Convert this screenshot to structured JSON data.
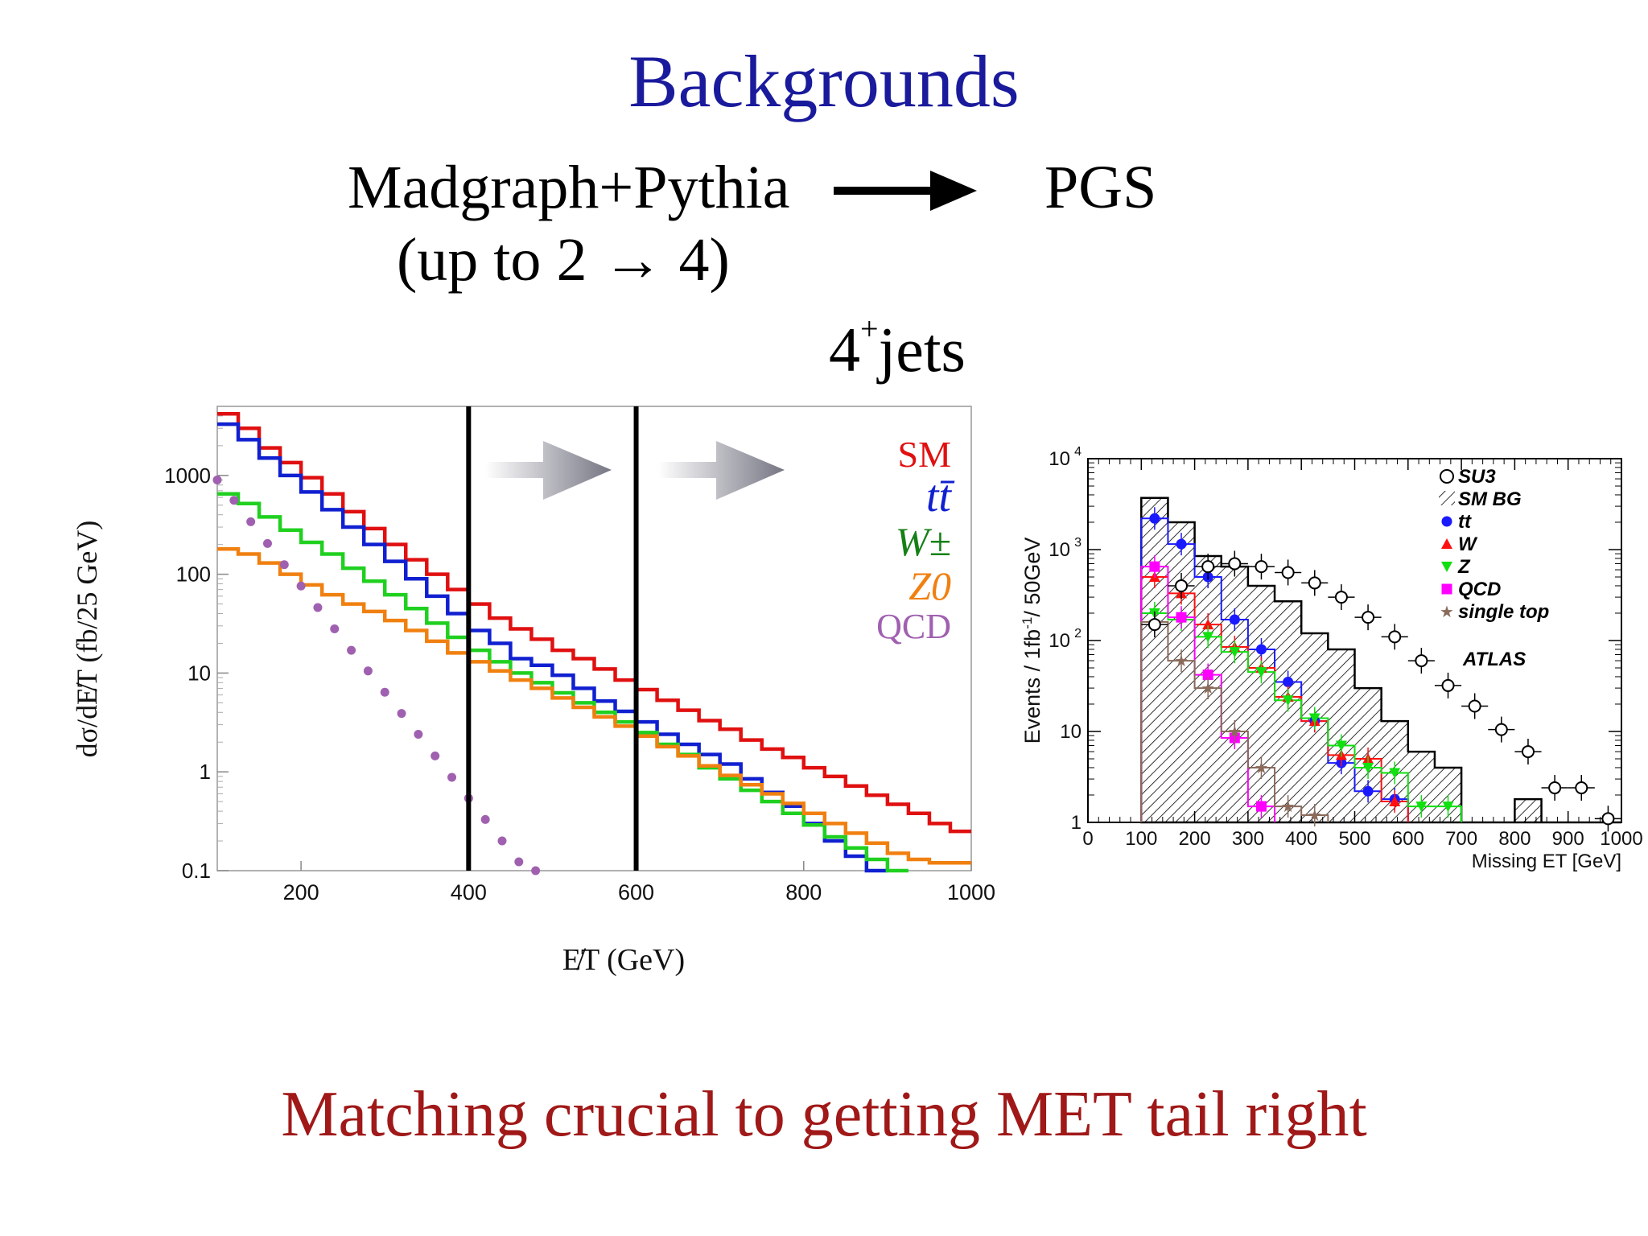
{
  "slide": {
    "title": "Backgrounds",
    "flow_left": "Madgraph+Pythia",
    "flow_sub_prefix": "(up to ",
    "flow_sub_math": "2 → 4",
    "flow_sub_suffix": ")",
    "flow_right": "PGS",
    "jets_base": "4",
    "jets_sup": "+",
    "jets_suffix": "jets",
    "footer": "Matching crucial to getting MET tail right"
  },
  "colors": {
    "title": "#1a1a9c",
    "footer": "#a01818",
    "SM": "#e01010",
    "tt": "#1020d0",
    "W": "#20d020",
    "Z0": "#f08010",
    "QCD": "#a060b0"
  },
  "chart_data": [
    {
      "type": "line",
      "style": "step histogram, log y-axis",
      "ylabel": "dσ/dE̸T (fb/25 GeV)",
      "xlabel": "E̸T (GeV)",
      "xlim": [
        100,
        1000
      ],
      "ylim": [
        0.1,
        5000
      ],
      "yscale": "log",
      "x_ticks": [
        "200",
        "400",
        "600",
        "800",
        "1000"
      ],
      "y_ticks": [
        "0.1",
        "1",
        "10",
        "100",
        "1000"
      ],
      "x_tick_values": [
        200,
        400,
        600,
        800,
        1000
      ],
      "y_tick_values": [
        0.1,
        1,
        10,
        100,
        1000
      ],
      "cut_lines": [
        400,
        600
      ],
      "legend_placement": "top-right",
      "legend": [
        "SM",
        "tt̄",
        "W±",
        "Z0",
        "QCD"
      ],
      "bin_edges_start": 100,
      "bin_width": 25,
      "series": [
        {
          "name": "SM",
          "color": "#e01010",
          "values": [
            4200,
            3000,
            1900,
            1350,
            950,
            650,
            430,
            290,
            200,
            140,
            100,
            70,
            50,
            36,
            28,
            22,
            17,
            14,
            11,
            8.5,
            6.8,
            5.3,
            4.2,
            3.3,
            2.7,
            2.1,
            1.7,
            1.4,
            1.1,
            0.9,
            0.72,
            0.58,
            0.47,
            0.38,
            0.3,
            0.25
          ]
        },
        {
          "name": "tt̄",
          "color": "#1020d0",
          "values": [
            3300,
            2300,
            1500,
            1000,
            680,
            450,
            300,
            200,
            135,
            90,
            60,
            40,
            27,
            20,
            14,
            12,
            9.5,
            7,
            5.2,
            4.1,
            3.2,
            2.4,
            1.9,
            1.5,
            1.2,
            0.85,
            0.62,
            0.45,
            0.3,
            0.2,
            0.14,
            0.1
          ]
        },
        {
          "name": "W±",
          "color": "#20d020",
          "values": [
            650,
            520,
            380,
            280,
            210,
            160,
            115,
            85,
            62,
            45,
            32,
            23,
            17,
            13,
            10,
            8,
            6.3,
            5,
            4,
            3.2,
            2.5,
            1.9,
            1.5,
            1.1,
            0.85,
            0.65,
            0.5,
            0.38,
            0.29,
            0.22,
            0.17,
            0.13,
            0.1
          ]
        },
        {
          "name": "Z0",
          "color": "#f08010",
          "values": [
            180,
            160,
            130,
            100,
            78,
            62,
            50,
            42,
            34,
            27,
            21,
            16,
            13,
            10.5,
            8.5,
            7,
            5.6,
            4.5,
            3.6,
            2.9,
            2.3,
            1.8,
            1.45,
            1.15,
            0.92,
            0.74,
            0.6,
            0.48,
            0.38,
            0.3,
            0.24,
            0.19,
            0.15,
            0.13,
            0.12,
            0.12
          ]
        },
        {
          "name": "QCD",
          "type": "scatter",
          "color": "#a060b0",
          "x": [
            100,
            120,
            140,
            160,
            180,
            200,
            220,
            240,
            260,
            280,
            300,
            320,
            340,
            360,
            380,
            400,
            420,
            440,
            460,
            480
          ],
          "values": [
            900,
            560,
            340,
            205,
            125,
            76,
            46,
            28,
            17,
            10.5,
            6.4,
            3.9,
            2.4,
            1.45,
            0.88,
            0.54,
            0.33,
            0.2,
            0.123,
            0.1
          ]
        }
      ]
    },
    {
      "type": "bar",
      "style": "stacked step histogram with markers, log y-axis",
      "ylabel": "Events / 1fb⁻¹/ 50GeV",
      "ylabel_parts": [
        "Events / 1fb",
        "-1",
        "/ 50GeV"
      ],
      "xlabel": "Missing ET [GeV]",
      "xlim": [
        0,
        1000
      ],
      "ylim": [
        1,
        10000
      ],
      "yscale": "log",
      "x_ticks": [
        "0",
        "100",
        "200",
        "300",
        "400",
        "500",
        "600",
        "700",
        "800",
        "900",
        "1000"
      ],
      "x_tick_values": [
        0,
        100,
        200,
        300,
        400,
        500,
        600,
        700,
        800,
        900,
        1000
      ],
      "y_ticks": [
        "1",
        "10",
        "10",
        "10",
        "10"
      ],
      "y_tick_exponents": [
        "",
        "",
        "2",
        "3",
        "4"
      ],
      "y_tick_values": [
        1,
        10,
        100,
        1000,
        10000
      ],
      "annotation": "ATLAS",
      "legend_placement": "top-right",
      "legend": [
        "SU3",
        "SM BG",
        "tt",
        "W",
        "Z",
        "QCD",
        "single top"
      ],
      "bin_width": 50,
      "bin_centers": [
        125,
        175,
        225,
        275,
        325,
        375,
        425,
        475,
        525,
        575,
        625,
        675,
        725,
        775,
        825,
        875,
        925,
        975
      ],
      "series": [
        {
          "name": "SM BG",
          "color": "#000000",
          "values": [
            3700,
            2000,
            850,
            650,
            400,
            270,
            120,
            80,
            30,
            13,
            6,
            4,
            1,
            1,
            1.8,
            1,
            1,
            1
          ]
        },
        {
          "name": "SU3",
          "color": "#000000",
          "values": [
            150,
            400,
            650,
            700,
            650,
            560,
            430,
            300,
            180,
            110,
            60,
            32,
            19,
            10.5,
            6,
            2.4,
            2.4,
            1.1
          ]
        },
        {
          "name": "tt",
          "color": "#1a1aff",
          "values": [
            2200,
            1150,
            500,
            170,
            80,
            35,
            13,
            4.5,
            2.2,
            1.8
          ]
        },
        {
          "name": "W",
          "color": "#ff1010",
          "values": [
            500,
            330,
            150,
            85,
            50,
            24,
            13,
            5.5,
            5,
            1.7
          ]
        },
        {
          "name": "Z",
          "color": "#10e010",
          "values": [
            200,
            170,
            110,
            75,
            45,
            22,
            14,
            7,
            4,
            3.5,
            1.5,
            1.5
          ]
        },
        {
          "name": "QCD",
          "color": "#ff00ff",
          "values": [
            650,
            180,
            42,
            8.5,
            1.5
          ]
        },
        {
          "name": "single top",
          "color": "#8a6a5a",
          "values": [
            160,
            60,
            30,
            10,
            4,
            1.5,
            1.2
          ]
        }
      ]
    }
  ]
}
